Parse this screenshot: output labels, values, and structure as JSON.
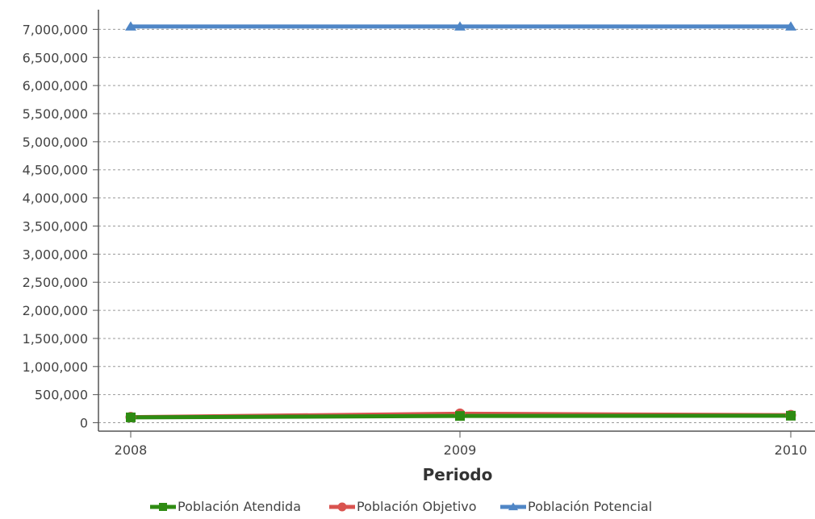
{
  "chart_data": {
    "type": "line",
    "title": "",
    "xlabel": "Periodo",
    "ylabel": "",
    "x": [
      "2008",
      "2009",
      "2010"
    ],
    "ylim": [
      -150000,
      7350000
    ],
    "y_ticks": [
      0,
      500000,
      1000000,
      1500000,
      2000000,
      2500000,
      3000000,
      3500000,
      4000000,
      4500000,
      5000000,
      5500000,
      6000000,
      6500000,
      7000000
    ],
    "y_tick_labels": [
      "0",
      "500,000",
      "1,000,000",
      "1,500,000",
      "2,000,000",
      "2,500,000",
      "3,000,000",
      "3,500,000",
      "4,000,000",
      "4,500,000",
      "5,000,000",
      "5,500,000",
      "6,000,000",
      "6,500,000",
      "7,000,000"
    ],
    "grid": "horizontal dashed",
    "legend_position": "bottom-center",
    "series": [
      {
        "name": "Población Atendida",
        "color": "#2e8b12",
        "marker": "square",
        "values": [
          95000,
          120000,
          125000
        ]
      },
      {
        "name": "Población Objetivo",
        "color": "#d9534f",
        "marker": "circle",
        "values": [
          100000,
          160000,
          135000
        ]
      },
      {
        "name": "Población Potencial",
        "color": "#4f86c6",
        "marker": "triangle",
        "values": [
          7050000,
          7050000,
          7050000
        ]
      }
    ]
  }
}
